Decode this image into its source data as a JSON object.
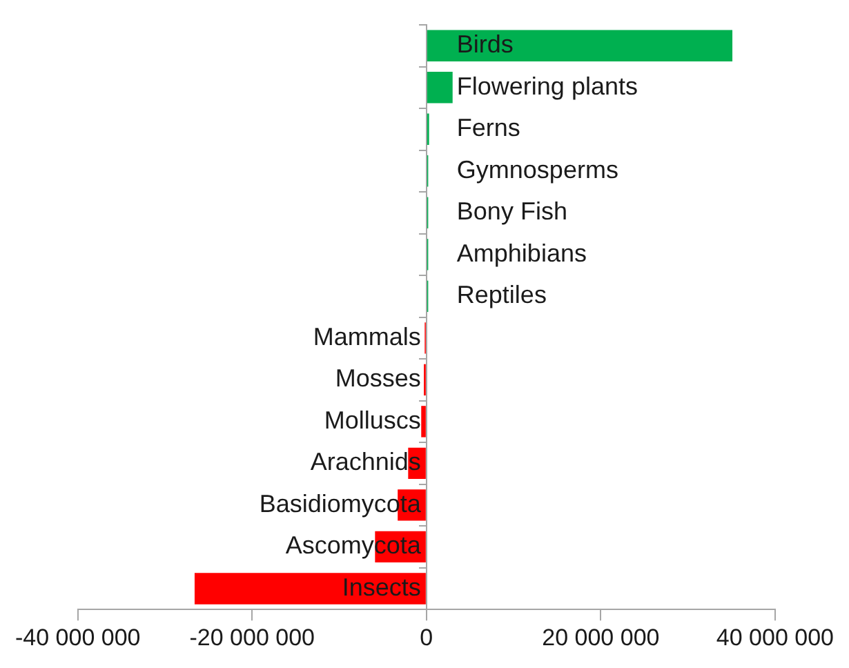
{
  "chart_data": {
    "type": "bar",
    "orientation": "horizontal",
    "categories": [
      "Birds",
      "Flowering plants",
      "Ferns",
      "Gymnosperms",
      "Bony Fish",
      "Amphibians",
      "Reptiles",
      "Mammals",
      "Mosses",
      "Molluscs",
      "Arachnids",
      "Basidiomycota",
      "Ascomycota",
      "Insects"
    ],
    "values": [
      35100000,
      3000000,
      300000,
      200000,
      200000,
      200000,
      200000,
      -200000,
      -300000,
      -600000,
      -2100000,
      -3300000,
      -5900000,
      -26600000
    ],
    "colors": [
      "#00b050",
      "#00b050",
      "#00b050",
      "#00b050",
      "#00b050",
      "#00b050",
      "#00b050",
      "#ff0000",
      "#ff0000",
      "#ff0000",
      "#ff0000",
      "#ff0000",
      "#ff0000",
      "#ff0000"
    ],
    "xlim": [
      -40000000,
      40000000
    ],
    "xticks": [
      {
        "value": -40000000,
        "label": "-40 000 000"
      },
      {
        "value": -20000000,
        "label": "-20 000 000"
      },
      0,
      {
        "value": 20000000,
        "label": "20 000 000"
      },
      {
        "value": 40000000,
        "label": "40 000 000"
      }
    ],
    "grid": false,
    "legend": false
  }
}
